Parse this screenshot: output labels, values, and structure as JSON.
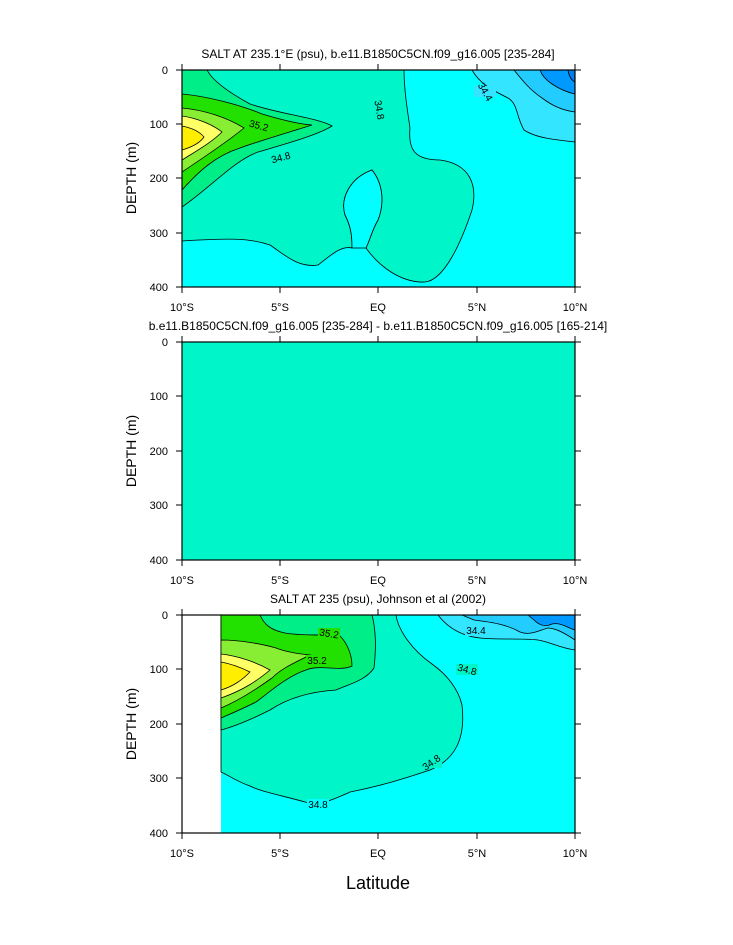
{
  "chart_data": [
    {
      "type": "contour",
      "title": "SALT AT 235.1°E (psu), b.e11.B1850C5CN.f09_g16.005 [235-284]",
      "ylabel": "DEPTH (m)",
      "xticks": [
        "10°S",
        "5°S",
        "EQ",
        "5°N",
        "10°N"
      ],
      "yticks": [
        "0",
        "100",
        "200",
        "300",
        "400"
      ],
      "xlim": [
        -10,
        10
      ],
      "ylim": [
        0,
        400
      ],
      "contour_labels": [
        "35.2",
        "34.8",
        "34.8",
        "34.4"
      ]
    },
    {
      "type": "contour",
      "title": "b.e11.B1850C5CN.f09_g16.005 [235-284] - b.e11.B1850C5CN.f09_g16.005 [165-214]",
      "ylabel": "DEPTH (m)",
      "xticks": [
        "10°S",
        "5°S",
        "EQ",
        "5°N",
        "10°N"
      ],
      "yticks": [
        "0",
        "100",
        "200",
        "300",
        "400"
      ],
      "xlim": [
        -10,
        10
      ],
      "ylim": [
        0,
        400
      ],
      "contour_labels": []
    },
    {
      "type": "contour",
      "title": "SALT AT 235 (psu), Johnson et al (2002)",
      "ylabel": "DEPTH (m)",
      "xticks": [
        "10°S",
        "5°S",
        "EQ",
        "5°N",
        "10°N"
      ],
      "yticks": [
        "0",
        "100",
        "200",
        "300",
        "400"
      ],
      "xlim": [
        -10,
        10
      ],
      "ylim": [
        0,
        400
      ],
      "contour_labels": [
        "35.2",
        "35.2",
        "34.4",
        "34.8",
        "34.8",
        "34.8"
      ]
    }
  ],
  "figure": {
    "xlabel": "Latitude"
  },
  "colors": {
    "cyan": "#00ffff",
    "aqua_green": "#00f5c8",
    "light_green": "#00ee88",
    "green": "#22e000",
    "yellow_green": "#88ee33",
    "pale_yellow": "#ffff66",
    "yellow": "#ffee00",
    "light_blue": "#33e5ff",
    "sky_blue": "#22ccff",
    "blue": "#0099ff"
  }
}
